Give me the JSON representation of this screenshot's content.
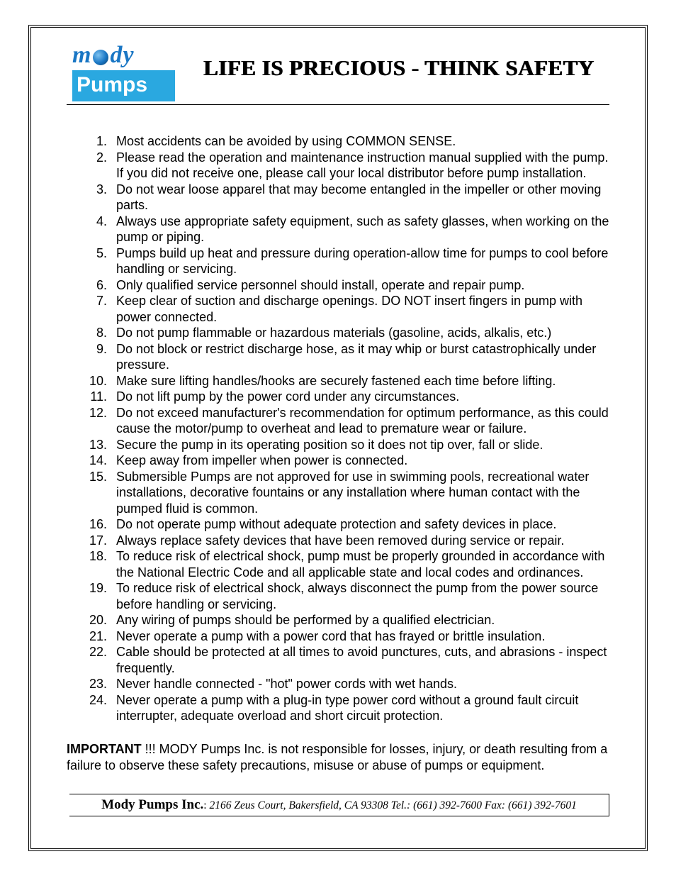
{
  "colors": {
    "border": "#000000",
    "logo_text": "#1976c4",
    "logo_bg": "#2aa8e0",
    "logo_fg": "#ffffff",
    "text": "#000000",
    "background": "#ffffff"
  },
  "logo": {
    "top_left": "m",
    "top_right": "dy",
    "bottom": "Pumps"
  },
  "title": "LIFE IS PRECIOUS - THINK SAFETY",
  "safety_items": [
    "Most accidents can be avoided by using COMMON SENSE.",
    "Please read the operation and maintenance instruction manual supplied with the pump. If you did not receive one, please call your local distributor before pump installation.",
    "Do not wear loose apparel that may become entangled in the impeller or other moving parts.",
    "Always use appropriate safety equipment, such as safety glasses, when working on the pump or piping.",
    "Pumps build up heat and pressure during operation-allow time for pumps to cool before handling or servicing.",
    "Only qualified service personnel should install, operate and repair pump.",
    "Keep clear of suction and discharge openings. DO NOT insert fingers in pump with power connected.",
    "Do not pump flammable or hazardous materials (gasoline, acids, alkalis, etc.)",
    "Do not block or restrict discharge hose, as it may whip or burst catastrophically under pressure.",
    "Make sure lifting handles/hooks are securely fastened each time before lifting.",
    "Do not lift pump by the power cord under any circumstances.",
    "Do not exceed manufacturer's recommendation for optimum performance, as this could cause the motor/pump to overheat and lead to premature wear or failure.",
    "Secure the pump in its operating position so it does not tip over, fall or slide.",
    "Keep away from impeller when power is connected.",
    "Submersible Pumps are not approved for use in swimming pools, recreational water installations, decorative fountains or any installation where human contact with the pumped fluid is common.",
    "Do not operate pump without adequate protection and safety devices in place.",
    "Always replace safety devices that have been removed during service or repair.",
    "To reduce risk of electrical shock, pump must be properly grounded in accordance with the National Electric Code and all applicable state and local codes and ordinances.",
    "To reduce risk of electrical shock, always disconnect the pump from the power source before handling or servicing.",
    "Any wiring of pumps should be performed by a qualified electrician.",
    "Never operate a pump with a power cord that has frayed or brittle insulation.",
    "Cable should be protected at all times to avoid punctures, cuts, and abrasions - inspect frequently.",
    "Never handle connected - \"hot\" power cords with wet hands.",
    "Never operate a pump with a plug-in type power cord without a ground fault circuit interrupter, adequate overload and short circuit protection."
  ],
  "important": {
    "label": "IMPORTANT",
    "text": " !!! MODY Pumps Inc. is not responsible for losses, injury, or death resulting from a failure to observe these safety precautions, misuse or abuse of pumps or equipment."
  },
  "footer": {
    "company": "Mody Pumps Inc.",
    "separator": ": ",
    "address": "2166 Zeus Court, Bakersfield, CA 93308 Tel.: (661) 392-7600   Fax: (661) 392-7601"
  }
}
